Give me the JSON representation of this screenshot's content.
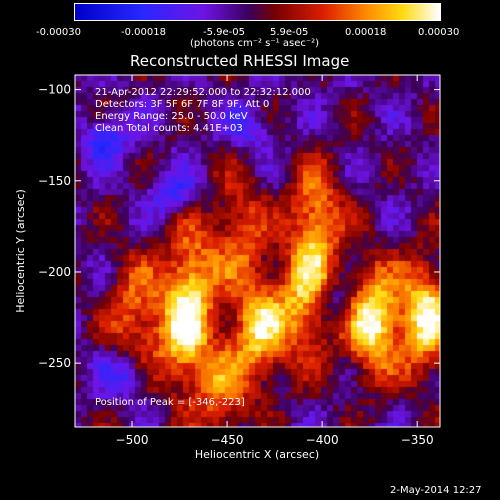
{
  "colorbar": {
    "ticks": [
      "-0.00030",
      "-0.00018",
      "-5.9e-05",
      "5.9e-05",
      "0.00018",
      "0.00030"
    ],
    "units": "(photons cm⁻² s⁻¹ asec⁻²)"
  },
  "annotations": {
    "time_range": "21-Apr-2012 22:29:52.000 to 22:32:12.000",
    "detectors": "Detectors: 3F 5F 6F 7F 8F 9F, Att 0",
    "energy_range": "Energy Range: 25.0 - 50.0 keV",
    "clean_counts": "Clean    Total counts: 4.41E+03",
    "peak_position": "Position of Peak = [-346,-223]"
  },
  "timestamp": "2-May-2014 12:27",
  "chart_data": {
    "type": "heatmap",
    "title": "Reconstructed RHESSI Image",
    "xlabel": "Heliocentric X (arcsec)",
    "ylabel": "Heliocentric Y (arcsec)",
    "xlim": [
      -530,
      -338
    ],
    "ylim": [
      -285,
      -92
    ],
    "x_ticks": [
      -500,
      -450,
      -400,
      -350
    ],
    "x_tick_labels": [
      "−500",
      "−450",
      "−400",
      "−350"
    ],
    "y_ticks": [
      -100,
      -150,
      -200,
      -250
    ],
    "y_tick_labels": [
      "−100",
      "−150",
      "−200",
      "−250"
    ],
    "colormap": "blue-purple-red-yellow-white",
    "value_range": [
      -0.0003,
      0.0003
    ],
    "peak": [
      -346,
      -223
    ],
    "bright_sources": [
      {
        "x": -375,
        "y": -225,
        "intensity": 1.0
      },
      {
        "x": -347,
        "y": -223,
        "intensity": 0.95
      },
      {
        "x": -405,
        "y": -170,
        "intensity": 0.7
      },
      {
        "x": -410,
        "y": -215,
        "intensity": 0.75
      },
      {
        "x": -435,
        "y": -230,
        "intensity": 0.8
      },
      {
        "x": -475,
        "y": -235,
        "intensity": 0.75
      },
      {
        "x": -470,
        "y": -200,
        "intensity": 0.65
      },
      {
        "x": -500,
        "y": -220,
        "intensity": 0.55
      },
      {
        "x": -445,
        "y": -175,
        "intensity": 0.5
      },
      {
        "x": -455,
        "y": -265,
        "intensity": 0.5
      }
    ],
    "dark_regions": [
      {
        "x": -515,
        "y": -125,
        "intensity": -0.8
      },
      {
        "x": -480,
        "y": -155,
        "intensity": -0.7
      },
      {
        "x": -505,
        "y": -255,
        "intensity": -0.7
      },
      {
        "x": -440,
        "y": -120,
        "intensity": -0.6
      },
      {
        "x": -395,
        "y": -215,
        "intensity": -0.6
      }
    ]
  }
}
